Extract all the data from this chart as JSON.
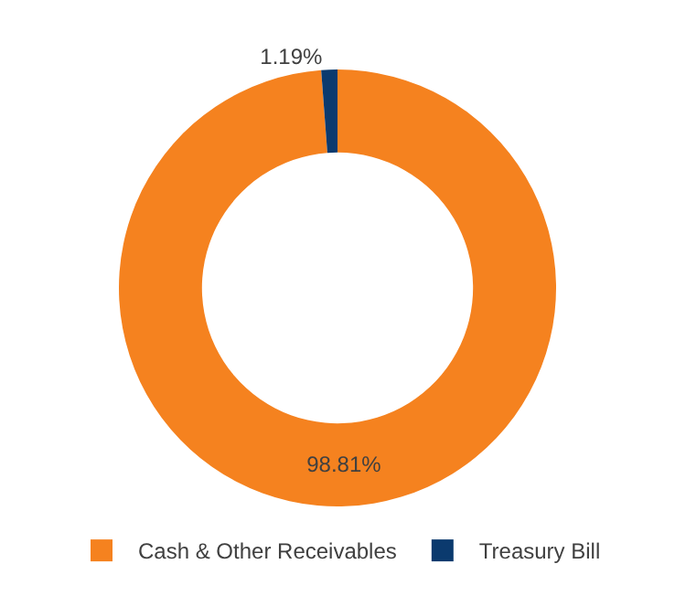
{
  "chart_data": {
    "type": "donut",
    "categories": [
      "Cash & Other Receivables",
      "Treasury Bill"
    ],
    "values": [
      98.81,
      1.19
    ],
    "value_labels": [
      "98.81%",
      "1.19%"
    ],
    "colors": [
      "#f5821f",
      "#0b3a6e"
    ],
    "legend": "bottom"
  }
}
